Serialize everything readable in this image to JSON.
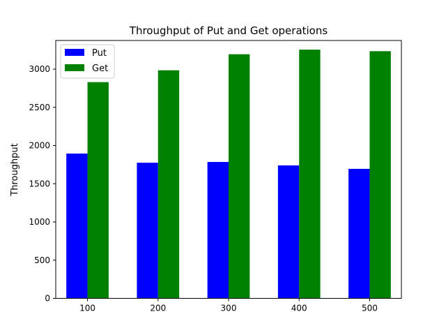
{
  "chart_data": {
    "type": "bar",
    "title": "Throughput of Put and Get operations",
    "xlabel": "",
    "ylabel": "Throughput",
    "categories": [
      "100",
      "200",
      "300",
      "400",
      "500"
    ],
    "series": [
      {
        "name": "Put",
        "color": "#0000ff",
        "values": [
          1895,
          1775,
          1785,
          1740,
          1695
        ]
      },
      {
        "name": "Get",
        "color": "#008000",
        "values": [
          2830,
          2985,
          3195,
          3255,
          3235
        ]
      }
    ],
    "ylim": [
      0,
      3375
    ],
    "yticks": [
      0,
      500,
      1000,
      1500,
      2000,
      2500,
      3000
    ],
    "legend": {
      "location": "top-left"
    },
    "grid": false
  }
}
